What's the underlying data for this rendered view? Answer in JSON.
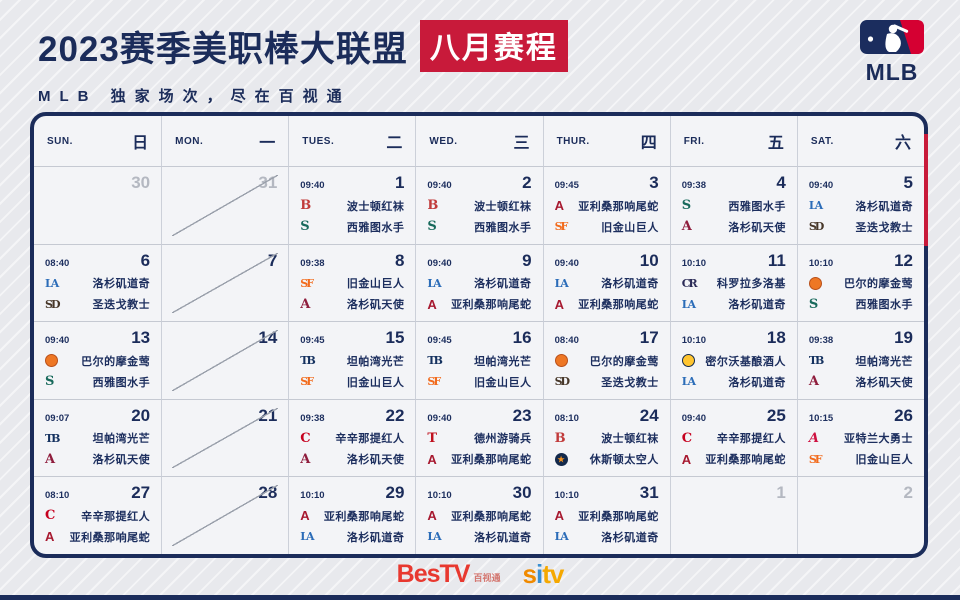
{
  "header": {
    "title": "2023赛季美职棒大联盟",
    "badge": "八月赛程",
    "subtitle": "MLB 独家场次，尽在百视通",
    "mlb_wordmark": "MLB"
  },
  "colors": {
    "navy": "#1b2c5a",
    "red": "#c81a3a",
    "panel_bg": "#f3f4f7",
    "muted_date": "#b4b8c1"
  },
  "calendar": {
    "day_headers": [
      {
        "en": "SUN.",
        "zh": "日"
      },
      {
        "en": "MON.",
        "zh": "一"
      },
      {
        "en": "TUES.",
        "zh": "二"
      },
      {
        "en": "WED.",
        "zh": "三"
      },
      {
        "en": "THUR.",
        "zh": "四"
      },
      {
        "en": "FRI.",
        "zh": "五"
      },
      {
        "en": "SAT.",
        "zh": "六"
      }
    ],
    "team_icons": {
      "redsox": {
        "kind": "letters",
        "text": "B",
        "color": "#c13a3a"
      },
      "mariners": {
        "kind": "letters",
        "text": "S",
        "color": "#17695b"
      },
      "dbacks": {
        "kind": "letters",
        "text": "A",
        "color": "#a71930",
        "sans": true
      },
      "giants": {
        "kind": "letters",
        "text": "SF",
        "color": "#f26b1d"
      },
      "dodgers": {
        "kind": "letters",
        "text": "LA",
        "color": "#2b6cb8"
      },
      "padres": {
        "kind": "letters",
        "text": "SD",
        "color": "#473729"
      },
      "angels": {
        "kind": "letters",
        "text": "A",
        "color": "#8f1d3d"
      },
      "rockies": {
        "kind": "letters",
        "text": "CR",
        "color": "#2b2b57"
      },
      "rays": {
        "kind": "letters",
        "text": "TB",
        "color": "#14315f"
      },
      "reds": {
        "kind": "letters",
        "text": "C",
        "color": "#c6011f"
      },
      "rangers": {
        "kind": "letters",
        "text": "T",
        "color": "#c0111f"
      },
      "braves": {
        "kind": "letters",
        "text": "A",
        "color": "#ce1141",
        "italic": true
      },
      "orioles": {
        "kind": "circle",
        "bg": "#ee7724",
        "border": "#b9501a"
      },
      "brewers": {
        "kind": "circle",
        "bg": "#ffc52f",
        "border": "#13294b"
      },
      "astros": {
        "kind": "circle",
        "bg": "#13294b",
        "star": "★",
        "star_color": "#f4911e"
      }
    },
    "cells": [
      {
        "date": "30",
        "muted": true
      },
      {
        "date": "31",
        "muted": true,
        "no_game": true
      },
      {
        "date": "1",
        "time": "09:40",
        "games": [
          {
            "icon": "redsox",
            "name": "波士顿红袜"
          },
          {
            "icon": "mariners",
            "name": "西雅图水手"
          }
        ]
      },
      {
        "date": "2",
        "time": "09:40",
        "games": [
          {
            "icon": "redsox",
            "name": "波士顿红袜"
          },
          {
            "icon": "mariners",
            "name": "西雅图水手"
          }
        ]
      },
      {
        "date": "3",
        "time": "09:45",
        "games": [
          {
            "icon": "dbacks",
            "name": "亚利桑那响尾蛇"
          },
          {
            "icon": "giants",
            "name": "旧金山巨人"
          }
        ]
      },
      {
        "date": "4",
        "time": "09:38",
        "games": [
          {
            "icon": "mariners",
            "name": "西雅图水手"
          },
          {
            "icon": "angels",
            "name": "洛杉矶天使"
          }
        ]
      },
      {
        "date": "5",
        "time": "09:40",
        "games": [
          {
            "icon": "dodgers",
            "name": "洛杉矶道奇"
          },
          {
            "icon": "padres",
            "name": "圣迭戈教士"
          }
        ]
      },
      {
        "date": "6",
        "time": "08:40",
        "games": [
          {
            "icon": "dodgers",
            "name": "洛杉矶道奇"
          },
          {
            "icon": "padres",
            "name": "圣迭戈教士"
          }
        ]
      },
      {
        "date": "7",
        "no_game": true
      },
      {
        "date": "8",
        "time": "09:38",
        "games": [
          {
            "icon": "giants",
            "name": "旧金山巨人"
          },
          {
            "icon": "angels",
            "name": "洛杉矶天使"
          }
        ]
      },
      {
        "date": "9",
        "time": "09:40",
        "games": [
          {
            "icon": "dodgers",
            "name": "洛杉矶道奇"
          },
          {
            "icon": "dbacks",
            "name": "亚利桑那响尾蛇"
          }
        ]
      },
      {
        "date": "10",
        "time": "09:40",
        "games": [
          {
            "icon": "dodgers",
            "name": "洛杉矶道奇"
          },
          {
            "icon": "dbacks",
            "name": "亚利桑那响尾蛇"
          }
        ]
      },
      {
        "date": "11",
        "time": "10:10",
        "games": [
          {
            "icon": "rockies",
            "name": "科罗拉多洛基"
          },
          {
            "icon": "dodgers",
            "name": "洛杉矶道奇"
          }
        ]
      },
      {
        "date": "12",
        "time": "10:10",
        "games": [
          {
            "icon": "orioles",
            "name": "巴尔的摩金莺"
          },
          {
            "icon": "mariners",
            "name": "西雅图水手"
          }
        ]
      },
      {
        "date": "13",
        "time": "09:40",
        "games": [
          {
            "icon": "orioles",
            "name": "巴尔的摩金莺"
          },
          {
            "icon": "mariners",
            "name": "西雅图水手"
          }
        ]
      },
      {
        "date": "14",
        "no_game": true
      },
      {
        "date": "15",
        "time": "09:45",
        "games": [
          {
            "icon": "rays",
            "name": "坦帕湾光芒"
          },
          {
            "icon": "giants",
            "name": "旧金山巨人"
          }
        ]
      },
      {
        "date": "16",
        "time": "09:45",
        "games": [
          {
            "icon": "rays",
            "name": "坦帕湾光芒"
          },
          {
            "icon": "giants",
            "name": "旧金山巨人"
          }
        ]
      },
      {
        "date": "17",
        "time": "08:40",
        "games": [
          {
            "icon": "orioles",
            "name": "巴尔的摩金莺"
          },
          {
            "icon": "padres",
            "name": "圣迭戈教士"
          }
        ]
      },
      {
        "date": "18",
        "time": "10:10",
        "games": [
          {
            "icon": "brewers",
            "name": "密尔沃基酿酒人"
          },
          {
            "icon": "dodgers",
            "name": "洛杉矶道奇"
          }
        ]
      },
      {
        "date": "19",
        "time": "09:38",
        "games": [
          {
            "icon": "rays",
            "name": "坦帕湾光芒"
          },
          {
            "icon": "angels",
            "name": "洛杉矶天使"
          }
        ]
      },
      {
        "date": "20",
        "time": "09:07",
        "games": [
          {
            "icon": "rays",
            "name": "坦帕湾光芒"
          },
          {
            "icon": "angels",
            "name": "洛杉矶天使"
          }
        ]
      },
      {
        "date": "21",
        "no_game": true
      },
      {
        "date": "22",
        "time": "09:38",
        "games": [
          {
            "icon": "reds",
            "name": "辛辛那提红人"
          },
          {
            "icon": "angels",
            "name": "洛杉矶天使"
          }
        ]
      },
      {
        "date": "23",
        "time": "09:40",
        "games": [
          {
            "icon": "rangers",
            "name": "德州游骑兵"
          },
          {
            "icon": "dbacks",
            "name": "亚利桑那响尾蛇"
          }
        ]
      },
      {
        "date": "24",
        "time": "08:10",
        "games": [
          {
            "icon": "redsox",
            "name": "波士顿红袜"
          },
          {
            "icon": "astros",
            "name": "休斯顿太空人"
          }
        ]
      },
      {
        "date": "25",
        "time": "09:40",
        "games": [
          {
            "icon": "reds",
            "name": "辛辛那提红人"
          },
          {
            "icon": "dbacks",
            "name": "亚利桑那响尾蛇"
          }
        ]
      },
      {
        "date": "26",
        "time": "10:15",
        "games": [
          {
            "icon": "braves",
            "name": "亚特兰大勇士"
          },
          {
            "icon": "giants",
            "name": "旧金山巨人"
          }
        ]
      },
      {
        "date": "27",
        "time": "08:10",
        "games": [
          {
            "icon": "reds",
            "name": "辛辛那提红人"
          },
          {
            "icon": "dbacks",
            "name": "亚利桑那响尾蛇"
          }
        ]
      },
      {
        "date": "28",
        "no_game": true
      },
      {
        "date": "29",
        "time": "10:10",
        "games": [
          {
            "icon": "dbacks",
            "name": "亚利桑那响尾蛇"
          },
          {
            "icon": "dodgers",
            "name": "洛杉矶道奇"
          }
        ]
      },
      {
        "date": "30",
        "time": "10:10",
        "games": [
          {
            "icon": "dbacks",
            "name": "亚利桑那响尾蛇"
          },
          {
            "icon": "dodgers",
            "name": "洛杉矶道奇"
          }
        ]
      },
      {
        "date": "31",
        "time": "10:10",
        "games": [
          {
            "icon": "dbacks",
            "name": "亚利桑那响尾蛇"
          },
          {
            "icon": "dodgers",
            "name": "洛杉矶道奇"
          }
        ]
      },
      {
        "date": "1",
        "muted": true
      },
      {
        "date": "2",
        "muted": true
      }
    ]
  },
  "footer": {
    "bestv": "BesTV",
    "bestv_sub": "百视通",
    "sitv_letters": [
      "s",
      "i",
      "t",
      "v"
    ]
  }
}
